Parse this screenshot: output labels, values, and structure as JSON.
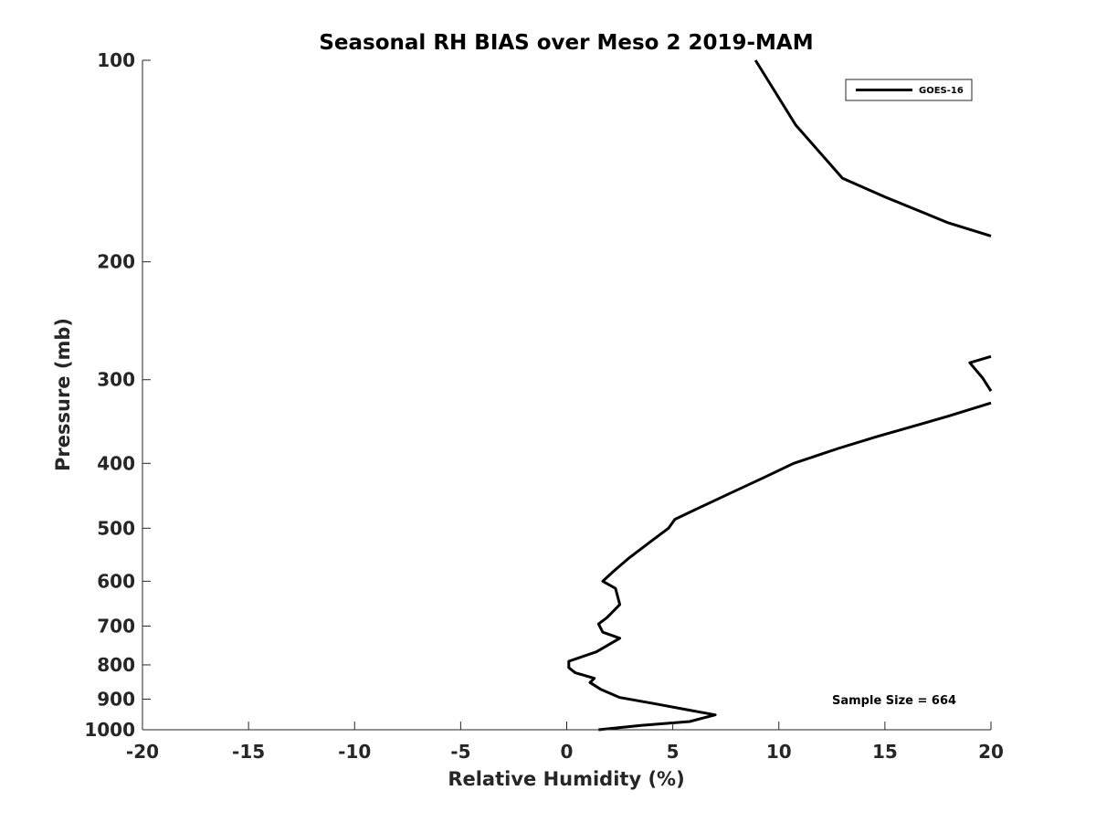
{
  "chart_data": {
    "type": "line",
    "title": "Seasonal RH BIAS over Meso 2  2019-MAM",
    "xlabel": "Relative Humidity (%)",
    "ylabel": "Pressure (mb)",
    "xlim": [
      -20,
      20
    ],
    "ylim": [
      100,
      1000
    ],
    "y_scale": "log",
    "y_direction": "reversed",
    "x_ticks": [
      "-20",
      "-15",
      "-10",
      "-5",
      "0",
      "5",
      "10",
      "15",
      "20"
    ],
    "y_ticks": [
      "100",
      "200",
      "300",
      "400",
      "500",
      "600",
      "700",
      "800",
      "900",
      "1000"
    ],
    "grid": false,
    "legend_position": "top-right",
    "annotation": "Sample Size = 664",
    "series": [
      {
        "name": "GOES-16",
        "color": "#000000",
        "segments": [
          [
            {
              "x": 8.9,
              "y": 100
            },
            {
              "x": 10.8,
              "y": 125
            },
            {
              "x": 13.0,
              "y": 150
            },
            {
              "x": 15.0,
              "y": 160
            },
            {
              "x": 18.0,
              "y": 175
            },
            {
              "x": 20.0,
              "y": 183
            }
          ],
          [
            {
              "x": 20.0,
              "y": 277
            },
            {
              "x": 19.0,
              "y": 283
            },
            {
              "x": 19.6,
              "y": 298
            },
            {
              "x": 20.0,
              "y": 312
            }
          ],
          [
            {
              "x": 20.0,
              "y": 325
            },
            {
              "x": 18.0,
              "y": 340
            },
            {
              "x": 14.6,
              "y": 365
            },
            {
              "x": 12.8,
              "y": 380
            },
            {
              "x": 10.7,
              "y": 400
            },
            {
              "x": 9.3,
              "y": 420
            },
            {
              "x": 7.6,
              "y": 445
            },
            {
              "x": 6.0,
              "y": 470
            },
            {
              "x": 5.1,
              "y": 485
            },
            {
              "x": 4.8,
              "y": 500
            },
            {
              "x": 3.9,
              "y": 525
            },
            {
              "x": 2.9,
              "y": 555
            },
            {
              "x": 2.2,
              "y": 580
            },
            {
              "x": 1.7,
              "y": 600
            },
            {
              "x": 2.3,
              "y": 615
            },
            {
              "x": 2.5,
              "y": 650
            },
            {
              "x": 1.9,
              "y": 680
            },
            {
              "x": 1.5,
              "y": 695
            },
            {
              "x": 1.7,
              "y": 715
            },
            {
              "x": 2.5,
              "y": 730
            },
            {
              "x": 1.4,
              "y": 765
            },
            {
              "x": 0.1,
              "y": 790
            },
            {
              "x": 0.1,
              "y": 808
            },
            {
              "x": 0.4,
              "y": 822
            },
            {
              "x": 1.3,
              "y": 838
            },
            {
              "x": 1.1,
              "y": 850
            },
            {
              "x": 1.6,
              "y": 870
            },
            {
              "x": 2.5,
              "y": 895
            },
            {
              "x": 4.2,
              "y": 915
            },
            {
              "x": 5.8,
              "y": 935
            },
            {
              "x": 7.0,
              "y": 950
            },
            {
              "x": 5.8,
              "y": 972
            },
            {
              "x": 3.5,
              "y": 985
            },
            {
              "x": 1.5,
              "y": 1000
            }
          ]
        ]
      }
    ]
  }
}
